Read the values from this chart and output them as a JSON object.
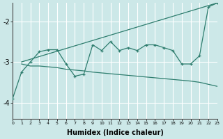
{
  "xlabel": "Humidex (Indice chaleur)",
  "bg_color": "#cce8e8",
  "grid_color": "#ffffff",
  "line_color": "#2e7d6e",
  "x_min": 0,
  "x_max": 23,
  "y_min": -4.4,
  "y_max": -1.55,
  "yticks": [
    -4,
    -3,
    -2
  ],
  "line1_x": [
    0,
    1,
    2,
    3,
    4,
    5,
    6,
    7,
    8,
    9,
    10,
    11,
    12,
    13,
    14,
    15,
    16,
    17,
    18,
    19,
    20,
    21,
    22,
    23
  ],
  "line1_y": [
    -3.9,
    -3.25,
    -3.0,
    -2.75,
    -2.7,
    -2.7,
    -3.05,
    -3.35,
    -3.3,
    -2.58,
    -2.72,
    -2.5,
    -2.72,
    -2.65,
    -2.72,
    -2.58,
    -2.58,
    -2.65,
    -2.72,
    -3.05,
    -3.05,
    -2.85,
    -1.65,
    -1.55
  ],
  "line2_x": [
    1,
    2,
    3,
    4,
    5,
    6,
    7,
    8,
    9,
    10,
    11,
    12,
    13,
    14,
    15,
    16,
    17,
    18,
    19,
    20,
    21,
    22,
    23
  ],
  "line2_y": [
    -3.05,
    -3.1,
    -3.1,
    -3.12,
    -3.14,
    -3.18,
    -3.2,
    -3.22,
    -3.25,
    -3.27,
    -3.29,
    -3.31,
    -3.33,
    -3.35,
    -3.37,
    -3.39,
    -3.41,
    -3.43,
    -3.45,
    -3.47,
    -3.5,
    -3.55,
    -3.6
  ],
  "line3_x": [
    1,
    23
  ],
  "line3_y": [
    -3.0,
    -1.55
  ]
}
